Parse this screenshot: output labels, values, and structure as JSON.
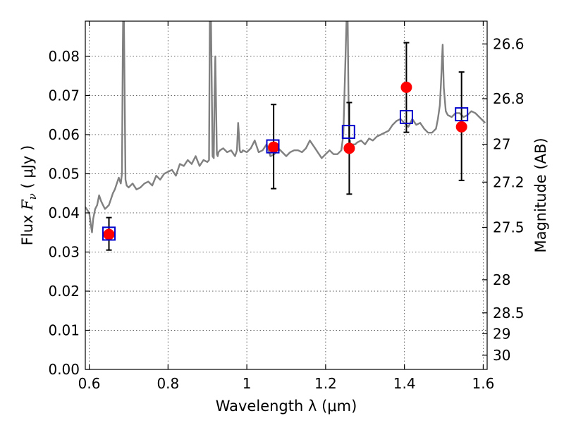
{
  "chart_data": {
    "type": "scatter",
    "xlabel": "Wavelength  λ (μm)",
    "ylabel": "Flux  F_ν  ( μJy )",
    "ylabel_right": "Magnitude (AB)",
    "xlim": [
      0.59,
      1.61
    ],
    "ylim": [
      0.0,
      0.089
    ],
    "grid": true,
    "x_ticks": [
      0.6,
      0.8,
      1.0,
      1.2,
      1.4,
      1.6
    ],
    "x_tick_labels": [
      "0.6",
      "0.8",
      "1",
      "1.2",
      "1.4",
      "1.6"
    ],
    "y_ticks": [
      0.0,
      0.01,
      0.02,
      0.03,
      0.04,
      0.05,
      0.06,
      0.07,
      0.08
    ],
    "y_tick_labels": [
      "0.00",
      "0.01",
      "0.02",
      "0.03",
      "0.04",
      "0.05",
      "0.06",
      "0.07",
      "0.08"
    ],
    "right_ticks": [
      {
        "label": "26.6",
        "mag": 26.6
      },
      {
        "label": "26.8",
        "mag": 26.8
      },
      {
        "label": "27",
        "mag": 27.0
      },
      {
        "label": "27.2",
        "mag": 27.2
      },
      {
        "label": "27.5",
        "mag": 27.5
      },
      {
        "label": "28",
        "mag": 28.0
      },
      {
        "label": "28.5",
        "mag": 28.5
      },
      {
        "label": "29",
        "mag": 29.0
      },
      {
        "label": "30",
        "mag": 30.0
      }
    ],
    "spectrum": {
      "color": "#808080",
      "x": [
        0.59,
        0.6,
        0.604,
        0.607,
        0.61,
        0.615,
        0.62,
        0.625,
        0.63,
        0.635,
        0.64,
        0.645,
        0.65,
        0.655,
        0.66,
        0.665,
        0.67,
        0.675,
        0.68,
        0.683,
        0.685,
        0.686,
        0.688,
        0.692,
        0.695,
        0.7,
        0.71,
        0.72,
        0.73,
        0.74,
        0.75,
        0.76,
        0.77,
        0.78,
        0.79,
        0.8,
        0.81,
        0.82,
        0.83,
        0.84,
        0.85,
        0.86,
        0.87,
        0.88,
        0.89,
        0.9,
        0.904,
        0.906,
        0.909,
        0.913,
        0.916,
        0.918,
        0.92,
        0.924,
        0.926,
        0.928,
        0.932,
        0.94,
        0.95,
        0.96,
        0.97,
        0.975,
        0.978,
        0.98,
        0.982,
        0.984,
        0.987,
        0.99,
        1.0,
        1.01,
        1.02,
        1.03,
        1.04,
        1.05,
        1.06,
        1.07,
        1.08,
        1.09,
        1.1,
        1.11,
        1.12,
        1.13,
        1.14,
        1.15,
        1.16,
        1.17,
        1.18,
        1.19,
        1.2,
        1.21,
        1.22,
        1.23,
        1.24,
        1.245,
        1.25,
        1.253,
        1.256,
        1.258,
        1.26,
        1.262,
        1.264,
        1.268,
        1.275,
        1.28,
        1.29,
        1.3,
        1.31,
        1.32,
        1.33,
        1.34,
        1.35,
        1.36,
        1.37,
        1.38,
        1.39,
        1.4,
        1.41,
        1.42,
        1.43,
        1.44,
        1.45,
        1.46,
        1.47,
        1.48,
        1.485,
        1.49,
        1.493,
        1.497,
        1.5,
        1.505,
        1.51,
        1.52,
        1.53,
        1.54,
        1.55,
        1.56,
        1.57,
        1.58,
        1.59,
        1.6,
        1.605
      ],
      "y": [
        0.0415,
        0.04,
        0.037,
        0.035,
        0.0385,
        0.041,
        0.042,
        0.0445,
        0.043,
        0.042,
        0.041,
        0.0415,
        0.042,
        0.0435,
        0.045,
        0.046,
        0.0475,
        0.049,
        0.0475,
        0.05,
        0.08,
        0.089,
        0.089,
        0.0485,
        0.047,
        0.0465,
        0.0475,
        0.046,
        0.0465,
        0.0475,
        0.048,
        0.047,
        0.0495,
        0.0485,
        0.05,
        0.0505,
        0.051,
        0.0495,
        0.0525,
        0.052,
        0.0535,
        0.0525,
        0.0545,
        0.052,
        0.0535,
        0.053,
        0.0535,
        0.089,
        0.089,
        0.0545,
        0.054,
        0.07,
        0.08,
        0.055,
        0.0545,
        0.0555,
        0.056,
        0.0565,
        0.0555,
        0.056,
        0.0545,
        0.056,
        0.063,
        0.06,
        0.056,
        0.0555,
        0.0555,
        0.056,
        0.0555,
        0.0565,
        0.0585,
        0.0555,
        0.056,
        0.0575,
        0.0545,
        0.055,
        0.0565,
        0.0555,
        0.0545,
        0.0555,
        0.056,
        0.056,
        0.0555,
        0.0565,
        0.0585,
        0.057,
        0.0555,
        0.054,
        0.055,
        0.056,
        0.055,
        0.055,
        0.056,
        0.06,
        0.078,
        0.089,
        0.089,
        0.07,
        0.0575,
        0.0585,
        0.057,
        0.0575,
        0.0575,
        0.058,
        0.0585,
        0.0575,
        0.059,
        0.0585,
        0.0595,
        0.06,
        0.0605,
        0.061,
        0.0625,
        0.0635,
        0.064,
        0.063,
        0.062,
        0.064,
        0.0625,
        0.063,
        0.0615,
        0.0605,
        0.0605,
        0.0615,
        0.064,
        0.0675,
        0.0735,
        0.083,
        0.072,
        0.066,
        0.065,
        0.0645,
        0.0655,
        0.0655,
        0.0645,
        0.065,
        0.066,
        0.0655,
        0.0645,
        0.0635,
        0.063
      ]
    },
    "model_points": {
      "color": "#0000cc",
      "marker": "open-square",
      "points": [
        {
          "x": 0.65,
          "y": 0.0347
        },
        {
          "x": 1.066,
          "y": 0.057
        },
        {
          "x": 1.258,
          "y": 0.0607
        },
        {
          "x": 1.405,
          "y": 0.0645
        },
        {
          "x": 1.545,
          "y": 0.0652
        }
      ]
    },
    "observed_points": {
      "color": "#ff0000",
      "overlap_color": "#aa00aa",
      "marker": "filled-circle",
      "points": [
        {
          "x": 0.65,
          "y": 0.0345,
          "yerr_low": 0.0305,
          "yerr_high": 0.0388,
          "overlap": true
        },
        {
          "x": 1.068,
          "y": 0.0568,
          "yerr_low": 0.0462,
          "yerr_high": 0.0677
        },
        {
          "x": 1.26,
          "y": 0.0565,
          "yerr_low": 0.0448,
          "yerr_high": 0.0682
        },
        {
          "x": 1.405,
          "y": 0.0721,
          "yerr_low": 0.0606,
          "yerr_high": 0.0835
        },
        {
          "x": 1.545,
          "y": 0.062,
          "yerr_low": 0.0483,
          "yerr_high": 0.076
        }
      ]
    }
  }
}
